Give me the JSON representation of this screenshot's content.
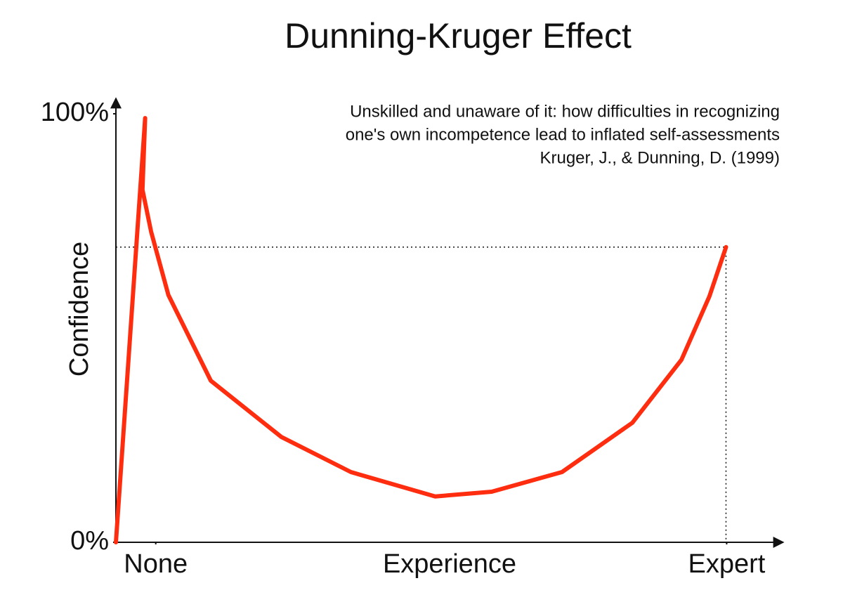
{
  "chart_data": {
    "type": "line",
    "title": "Dunning-Kruger Effect",
    "subtitle": [
      "Unskilled and unaware of it: how difficulties in recognizing",
      "one's own incompetence lead to inflated self-assessments",
      "Kruger, J., & Dunning, D. (1999)"
    ],
    "x_label": "Experience",
    "y_label": "Confidence",
    "x": [
      0,
      4.4,
      4.0,
      5.3,
      7.9,
      14.3,
      24.9,
      35.4,
      48.1,
      56.6,
      67.2,
      77.8,
      85.2,
      89.4,
      91.9
    ],
    "series": [
      {
        "color": "#ff2d0f",
        "values": [
          0,
          99,
          82.3,
          72.5,
          57.7,
          37.7,
          24.6,
          16.4,
          10.7,
          11.8,
          16.4,
          27.9,
          42.6,
          57.4,
          68.9
        ]
      }
    ],
    "xlim": [
      0,
      100
    ],
    "xticks": [
      {
        "value": 6,
        "label": "None"
      },
      {
        "value": 92,
        "label": "Expert"
      }
    ],
    "ylim": [
      0,
      100
    ],
    "yticks": [
      {
        "value": 0,
        "label": "0%"
      },
      {
        "value": 100,
        "label": "100%"
      }
    ],
    "grid": false
  }
}
